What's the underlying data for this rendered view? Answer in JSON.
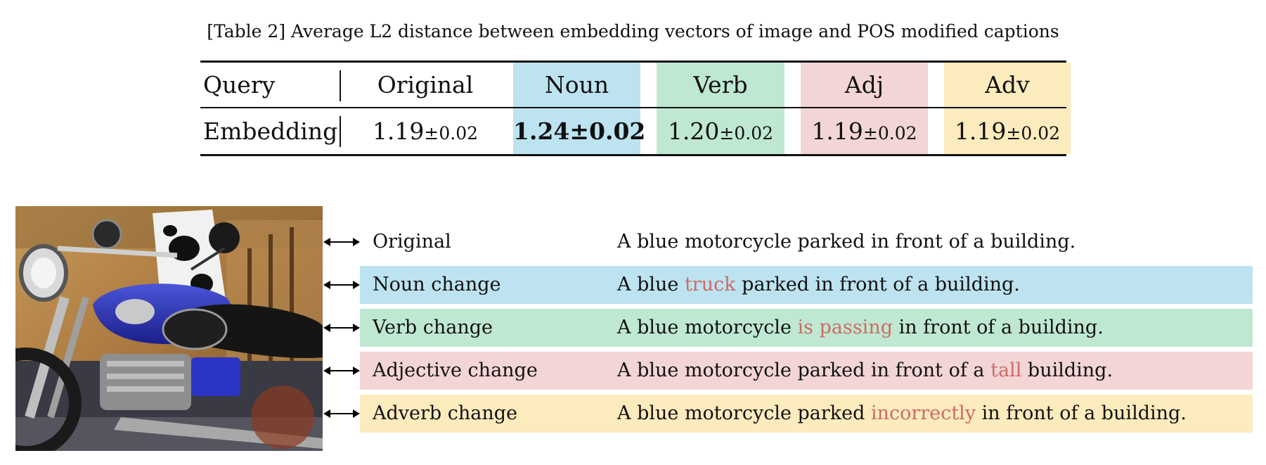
{
  "caption": "[Table 2] Average L2 distance between embedding vectors of image and POS modified captions",
  "colors": {
    "noun": "#bde3f0",
    "verb": "#bfe8d2",
    "adj": "#f3d5d6",
    "adv": "#fcebbd",
    "highlight": "#cd6b66"
  },
  "table": {
    "headers": [
      "Query",
      "Original",
      "Noun",
      "Verb",
      "Adj",
      "Adv"
    ],
    "row": {
      "label": "Embedding",
      "cells": [
        {
          "mean": "1.19",
          "sd": "±0.02"
        },
        {
          "mean": "1.24±0.02",
          "sd": ""
        },
        {
          "mean": "1.20",
          "sd": "±0.02"
        },
        {
          "mean": "1.19",
          "sd": "±0.02"
        },
        {
          "mean": "1.19",
          "sd": "±0.02"
        }
      ]
    }
  },
  "image": {
    "icon": "motorcycle-photo"
  },
  "rows": [
    {
      "label": "Original",
      "pre": "A blue motorcycle parked in front of a building.",
      "hl": "",
      "post": ""
    },
    {
      "label": "Noun change",
      "pre": "A blue ",
      "hl": "truck",
      "post": " parked in front of a building."
    },
    {
      "label": "Verb change",
      "pre": "A blue motorcycle ",
      "hl": "is passing",
      "post": " in front of a building."
    },
    {
      "label": "Adjective change",
      "pre": "A blue motorcycle parked in front of a ",
      "hl": "tall",
      "post": " building."
    },
    {
      "label": "Adverb change",
      "pre": "A blue motorcycle parked ",
      "hl": "incorrectly",
      "post": " in front of a building."
    }
  ]
}
